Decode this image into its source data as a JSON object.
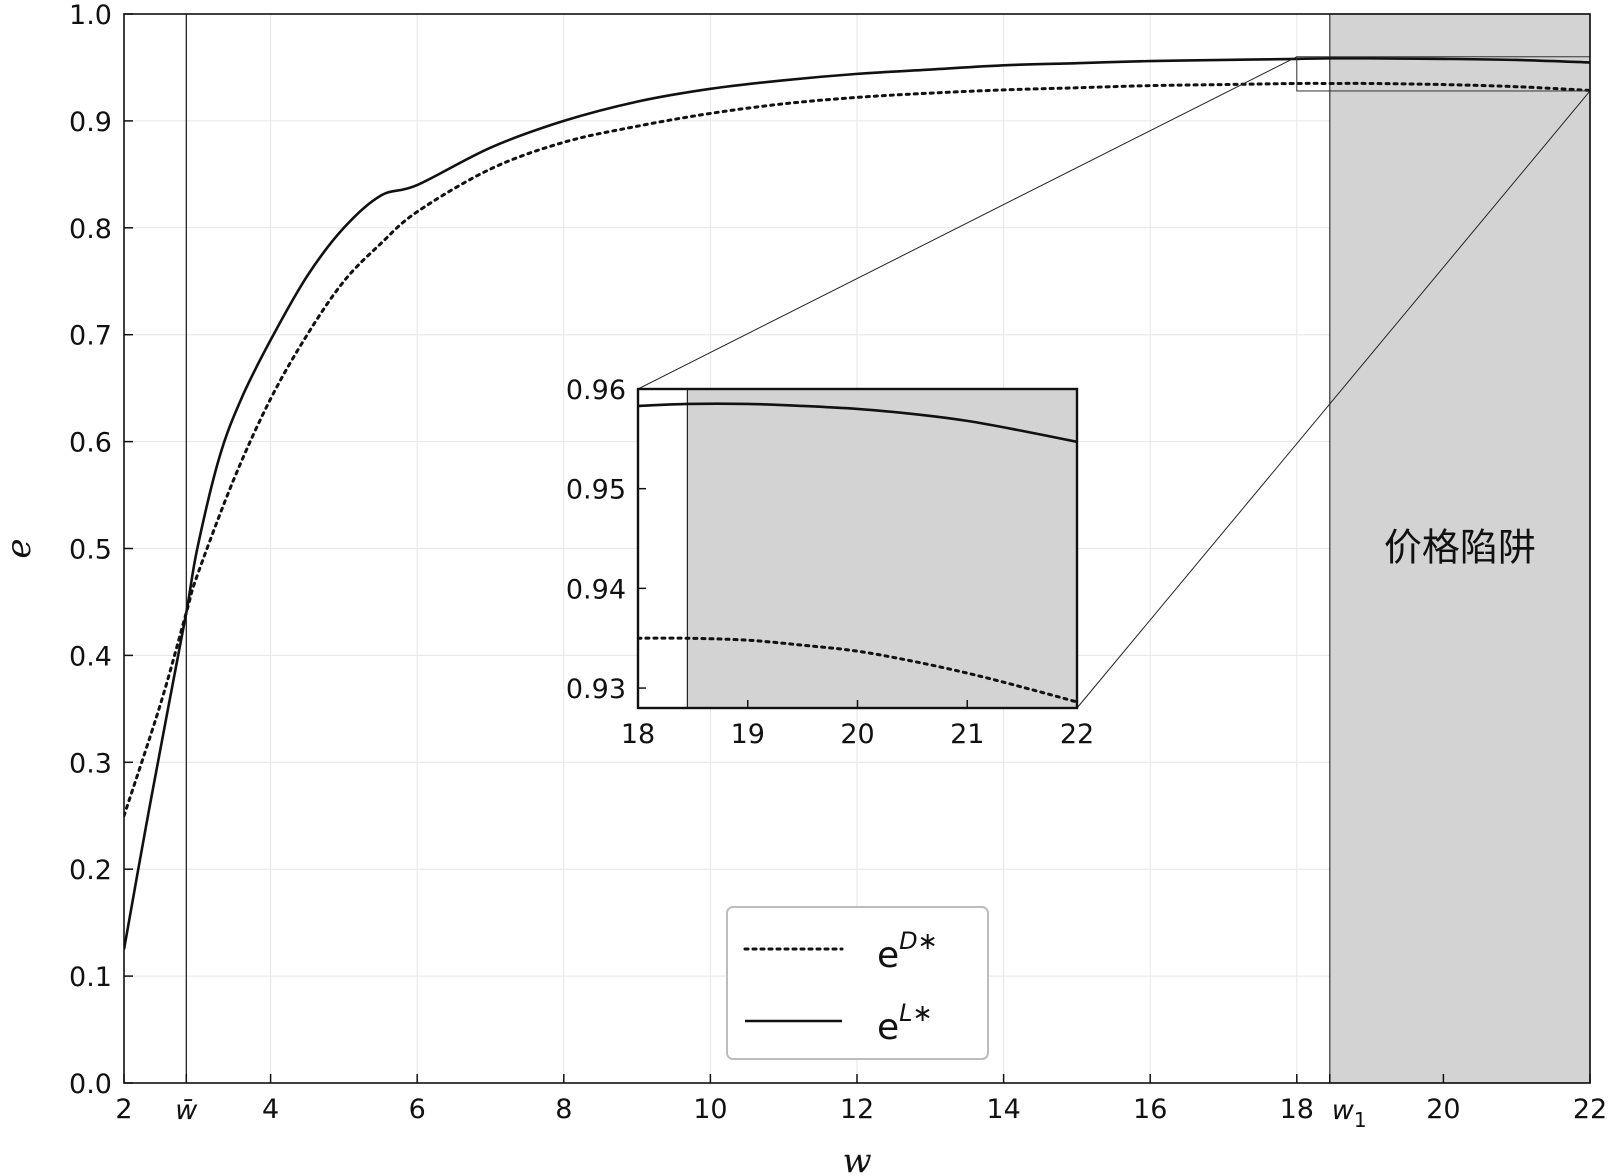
{
  "chart_data": [
    {
      "type": "line",
      "xlabel": "w",
      "ylabel": "e",
      "xlim": [
        2,
        22
      ],
      "ylim": [
        0.0,
        1.0
      ],
      "xticks": [
        "2",
        "4",
        "6",
        "8",
        "10",
        "12",
        "14",
        "16",
        "18",
        "20",
        "22"
      ],
      "yticks": [
        "0.0",
        "0.1",
        "0.2",
        "0.3",
        "0.4",
        "0.5",
        "0.6",
        "0.7",
        "0.8",
        "0.9",
        "1.0"
      ],
      "grid": true,
      "special_ticks": {
        "w_bar": {
          "x": 2.85,
          "label": "w̄"
        },
        "w_1": {
          "x": 18.45,
          "label": "w",
          "sub": "1"
        }
      },
      "shaded_region": {
        "x_start": 18.45,
        "x_end": 22,
        "label": "价格陷阱",
        "color": "#d3d3d3"
      },
      "legend": {
        "placement": "bottom-center"
      },
      "series": [
        {
          "name": "e",
          "sup": "D∗",
          "style": "dotted",
          "x": [
            2,
            2.5,
            2.85,
            3,
            3.5,
            4,
            4.5,
            5,
            5.5,
            6,
            7,
            8,
            9,
            10,
            11,
            12,
            13,
            14,
            15,
            16,
            17,
            18,
            18.45,
            19,
            20,
            21,
            22
          ],
          "y": [
            0.25,
            0.355,
            0.44,
            0.475,
            0.565,
            0.64,
            0.7,
            0.75,
            0.785,
            0.815,
            0.855,
            0.88,
            0.895,
            0.907,
            0.916,
            0.922,
            0.926,
            0.929,
            0.931,
            0.933,
            0.934,
            0.935,
            0.935,
            0.935,
            0.934,
            0.932,
            0.9285
          ]
        },
        {
          "name": "e",
          "sup": "L∗",
          "style": "solid",
          "x": [
            2,
            2.3,
            2.6,
            2.85,
            3,
            3.3,
            3.6,
            4,
            4.5,
            5,
            5.5,
            6,
            7,
            8,
            9,
            10,
            11,
            12,
            13,
            14,
            15,
            16,
            17,
            18,
            18.45,
            19,
            20,
            21,
            22
          ],
          "y": [
            0.125,
            0.24,
            0.35,
            0.44,
            0.5,
            0.585,
            0.64,
            0.695,
            0.755,
            0.8,
            0.83,
            0.84,
            0.875,
            0.9,
            0.918,
            0.93,
            0.938,
            0.944,
            0.948,
            0.952,
            0.954,
            0.956,
            0.957,
            0.958,
            0.9585,
            0.9585,
            0.958,
            0.957,
            0.9547
          ]
        }
      ]
    },
    {
      "type": "line",
      "role": "inset",
      "xlim": [
        18,
        22
      ],
      "ylim": [
        0.928,
        0.96
      ],
      "xticks": [
        "18",
        "19",
        "20",
        "21",
        "22"
      ],
      "yticks": [
        "0.93",
        "0.94",
        "0.95",
        "0.96"
      ],
      "shaded_region": {
        "x_start": 18.45,
        "x_end": 22,
        "color": "#d3d3d3"
      },
      "series": [
        {
          "style": "dotted",
          "x": [
            18,
            18.45,
            19,
            19.5,
            20,
            20.5,
            21,
            21.5,
            22
          ],
          "y": [
            0.935,
            0.935,
            0.9348,
            0.9343,
            0.9337,
            0.9327,
            0.9315,
            0.9301,
            0.9286
          ]
        },
        {
          "style": "solid",
          "x": [
            18,
            18.45,
            19,
            19.5,
            20,
            20.5,
            21,
            21.5,
            22
          ],
          "y": [
            0.9583,
            0.9585,
            0.9585,
            0.9583,
            0.958,
            0.9575,
            0.9568,
            0.9558,
            0.9547
          ]
        }
      ]
    }
  ]
}
